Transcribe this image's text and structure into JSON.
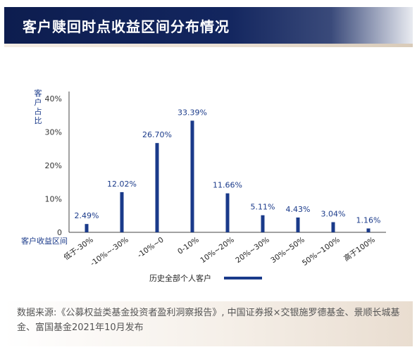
{
  "header": {
    "title": "客户赎回时点收益区间分布情况"
  },
  "chart_data": {
    "type": "bar",
    "title": "客户赎回时点收益区间分布情况",
    "ylabel": "客户占比",
    "xlabel": "客户收益区间",
    "ylim": [
      0,
      40
    ],
    "yticks": [
      "0",
      "10%",
      "20%",
      "30%",
      "40%"
    ],
    "ytick_values": [
      0,
      10,
      20,
      30,
      40
    ],
    "categories": [
      "低于-30%",
      "-10%~-30%",
      "-10%~0",
      "0-10%",
      "10%~20%",
      "20%~30%",
      "30%~50%",
      "50%~100%",
      "高于100%"
    ],
    "series": [
      {
        "name": "历史全部个人客户",
        "values": [
          2.49,
          12.02,
          26.7,
          33.39,
          11.66,
          5.11,
          4.43,
          3.04,
          1.16
        ],
        "labels": [
          "2.49%",
          "12.02%",
          "26.70%",
          "33.39%",
          "11.66%",
          "5.11%",
          "4.43%",
          "3.04%",
          "1.16%"
        ]
      }
    ],
    "legend_position": "bottom-center",
    "grid": false,
    "bar_color": "#1a3a8a"
  },
  "source": {
    "text": "数据来源:《公募权益类基金投资者盈利洞察报告》, 中国证券报×交银施罗德基金、景顺长城基金、富国基金2021年10月发布"
  }
}
